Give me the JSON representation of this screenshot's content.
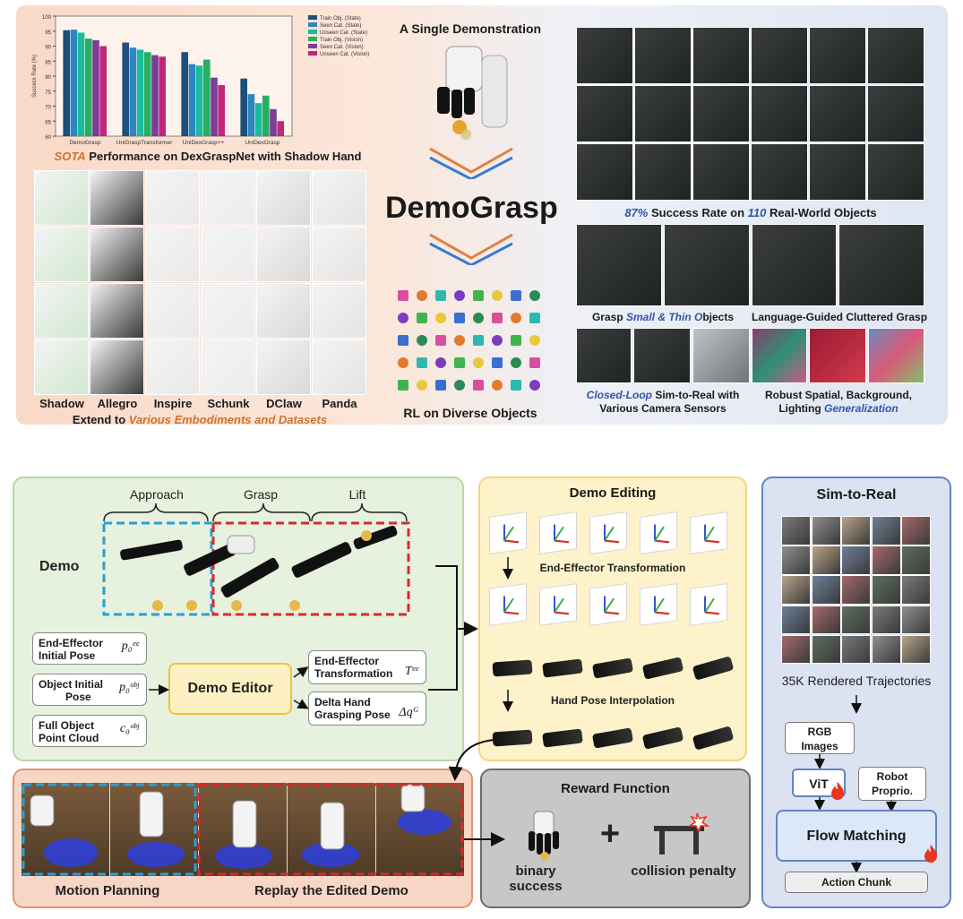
{
  "chart_data": {
    "type": "bar",
    "title": "",
    "ylabel": "Success Rate (%)",
    "ylim": [
      60,
      100
    ],
    "yticks": [
      60,
      65,
      70,
      75,
      80,
      85,
      90,
      95,
      100
    ],
    "categories": [
      "DemoGrasp",
      "UniGraspTransformer",
      "UniDexGrasp++",
      "UniDexGrasp"
    ],
    "series": [
      {
        "name": "Train Obj. (State)",
        "color": "#1e4e79",
        "values": [
          95.3,
          91.2,
          88.0,
          79.2
        ]
      },
      {
        "name": "Seen Cat. (State)",
        "color": "#2e86c1",
        "values": [
          95.5,
          89.5,
          84.0,
          74.0
        ]
      },
      {
        "name": "Unseen Cat. (State)",
        "color": "#1abc9c",
        "values": [
          94.5,
          88.8,
          83.5,
          71.0
        ]
      },
      {
        "name": "Train Obj. (Vision)",
        "color": "#27ae60",
        "values": [
          92.5,
          88.0,
          85.5,
          73.5
        ]
      },
      {
        "name": "Seen Cat. (Vision)",
        "color": "#7d3c98",
        "values": [
          92.0,
          87.0,
          79.5,
          69.0
        ]
      },
      {
        "name": "Unseen Cat. (Vision)",
        "color": "#c0267a",
        "values": [
          90.0,
          86.5,
          77.0,
          65.0
        ]
      }
    ]
  },
  "top": {
    "sota_label": "SOTA",
    "chart_caption": " Performance on DexGraspNet with Shadow Hand",
    "embodiments": [
      "Shadow",
      "Allegro",
      "Inspire",
      "Schunk",
      "DClaw",
      "Panda"
    ],
    "extend_prefix": "Extend to ",
    "extend_highlight": "Various Embodiments and Datasets",
    "single_demo": "A Single Demonstration",
    "brand": "DemoGrasp",
    "rl_caption": "RL on Diverse Objects",
    "success_pct": "87%",
    "success_mid": " Success Rate on ",
    "success_count": "110",
    "success_tail": " Real-World Objects",
    "grasp_prefix": "Grasp ",
    "grasp_highlight": "Small & Thin ",
    "grasp_highlight2": "O",
    "grasp_tail": "bjects",
    "language_caption": "Language-Guided Cluttered Grasp",
    "closed_loop_highlight": "Closed-Loop",
    "closed_loop_tail": " Sim-to-Real with",
    "closed_loop_line2": "Various Camera Sensors",
    "robust_line1": "Robust Spatial, Background,",
    "robust_line2_prefix": "Lighting ",
    "robust_line2_highlight": "Generalization"
  },
  "pipeline": {
    "stage_approach": "Approach",
    "stage_grasp": "Grasp",
    "stage_lift": "Lift",
    "demo_label": "Demo",
    "input_ee_line1": "End-Effector",
    "input_ee_line2": "Initial Pose",
    "input_ee_sym": "p₀ᵉᵉ",
    "input_obj_line1": "Object Initial",
    "input_obj_line2": "Pose",
    "input_obj_sym": "p₀ᵒᵇʲ",
    "input_pc_line1": "Full Object",
    "input_pc_line2": "Point Cloud",
    "input_pc_sym": "c₀ᵒᵇʲ",
    "demo_editor": "Demo Editor",
    "out_ee_line1": "End-Effector",
    "out_ee_line2": "Transformation",
    "out_ee_sym": "Tᵉᵉ",
    "out_delta_line1": "Delta Hand",
    "out_delta_line2": "Grasping Pose",
    "out_delta_sym": "Δqᴳ",
    "demo_editing": "Demo Editing",
    "ee_transformation": "End-Effector Transformation",
    "hand_pose_interp": "Hand Pose Interpolation",
    "sim_to_real": "Sim-to-Real",
    "rendered": "35K Rendered Trajectories",
    "rgb_line1": "RGB",
    "rgb_line2": "Images",
    "vit": "ViT",
    "robot_line1": "Robot",
    "robot_line2": "Proprio.",
    "flow_matching": "Flow Matching",
    "action_chunk": "Action Chunk",
    "motion_planning": "Motion Planning",
    "replay": "Replay the Edited Demo",
    "reward_function": "Reward Function",
    "binary_success": "binary success",
    "collision_penalty": "collision penalty",
    "plus": "+"
  }
}
